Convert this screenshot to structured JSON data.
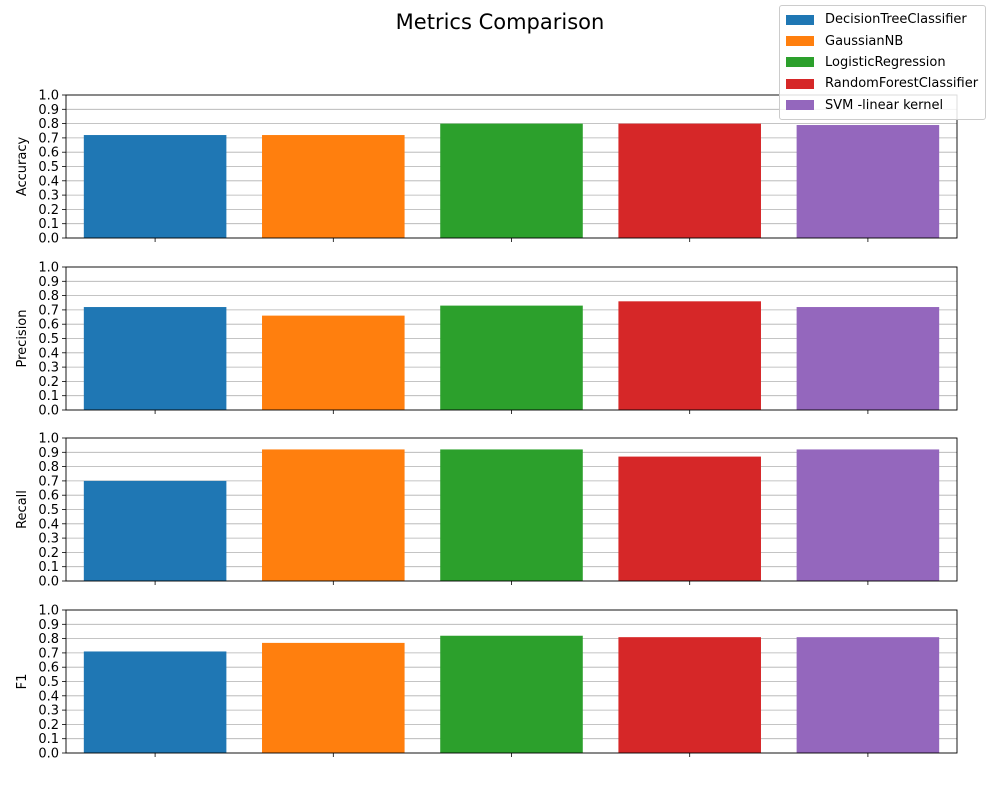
{
  "figure": {
    "title": "Metrics Comparison"
  },
  "legend": {
    "placement": "top-right",
    "items": [
      {
        "label": "DecisionTreeClassifier",
        "color": "#1f77b4"
      },
      {
        "label": "GaussianNB",
        "color": "#ff7f0e"
      },
      {
        "label": "LogisticRegression",
        "color": "#2ca02c"
      },
      {
        "label": "RandomForestClassifier",
        "color": "#d62728"
      },
      {
        "label": "SVM -linear kernel",
        "color": "#9467bd"
      }
    ]
  },
  "chart_data": [
    {
      "type": "bar",
      "ylabel": "Accuracy",
      "ylim": [
        0,
        1
      ],
      "yticks": [
        "0.0",
        "0.1",
        "0.2",
        "0.3",
        "0.4",
        "0.5",
        "0.6",
        "0.7",
        "0.8",
        "0.9",
        "1.0"
      ],
      "grid": "y",
      "categories": [
        "DecisionTreeClassifier",
        "GaussianNB",
        "LogisticRegression",
        "RandomForestClassifier",
        "SVM -linear kernel"
      ],
      "values": [
        0.72,
        0.72,
        0.8,
        0.8,
        0.79
      ]
    },
    {
      "type": "bar",
      "ylabel": "Precision",
      "ylim": [
        0,
        1
      ],
      "yticks": [
        "0.0",
        "0.1",
        "0.2",
        "0.3",
        "0.4",
        "0.5",
        "0.6",
        "0.7",
        "0.8",
        "0.9",
        "1.0"
      ],
      "grid": "y",
      "categories": [
        "DecisionTreeClassifier",
        "GaussianNB",
        "LogisticRegression",
        "RandomForestClassifier",
        "SVM -linear kernel"
      ],
      "values": [
        0.72,
        0.66,
        0.73,
        0.76,
        0.72
      ]
    },
    {
      "type": "bar",
      "ylabel": "Recall",
      "ylim": [
        0,
        1
      ],
      "yticks": [
        "0.0",
        "0.1",
        "0.2",
        "0.3",
        "0.4",
        "0.5",
        "0.6",
        "0.7",
        "0.8",
        "0.9",
        "1.0"
      ],
      "grid": "y",
      "categories": [
        "DecisionTreeClassifier",
        "GaussianNB",
        "LogisticRegression",
        "RandomForestClassifier",
        "SVM -linear kernel"
      ],
      "values": [
        0.7,
        0.92,
        0.92,
        0.87,
        0.92
      ]
    },
    {
      "type": "bar",
      "ylabel": "F1",
      "ylim": [
        0,
        1
      ],
      "yticks": [
        "0.0",
        "0.1",
        "0.2",
        "0.3",
        "0.4",
        "0.5",
        "0.6",
        "0.7",
        "0.8",
        "0.9",
        "1.0"
      ],
      "grid": "y",
      "categories": [
        "DecisionTreeClassifier",
        "GaussianNB",
        "LogisticRegression",
        "RandomForestClassifier",
        "SVM -linear kernel"
      ],
      "values": [
        0.71,
        0.77,
        0.82,
        0.81,
        0.81
      ]
    }
  ]
}
